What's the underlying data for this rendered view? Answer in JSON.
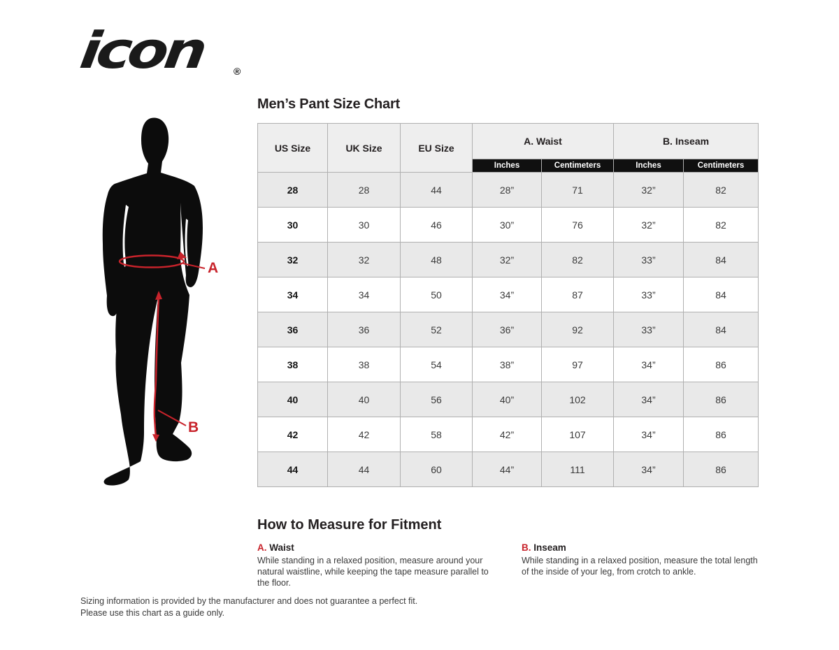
{
  "brand": {
    "logo_text": "icon",
    "registered_mark": "®"
  },
  "chart": {
    "title": "Men’s Pant Size Chart",
    "headers": {
      "us": "US Size",
      "uk": "UK Size",
      "eu": "EU Size",
      "waist": "A. Waist",
      "inseam": "B. Inseam",
      "inches": "Inches",
      "centimeters": "Centimeters"
    },
    "rows": [
      [
        "28",
        "28",
        "44",
        "28”",
        "71",
        "32”",
        "82"
      ],
      [
        "30",
        "30",
        "46",
        "30”",
        "76",
        "32”",
        "82"
      ],
      [
        "32",
        "32",
        "48",
        "32”",
        "82",
        "33”",
        "84"
      ],
      [
        "34",
        "34",
        "50",
        "34”",
        "87",
        "33”",
        "84"
      ],
      [
        "36",
        "36",
        "52",
        "36”",
        "92",
        "33”",
        "84"
      ],
      [
        "38",
        "38",
        "54",
        "38”",
        "97",
        "34”",
        "86"
      ],
      [
        "40",
        "40",
        "56",
        "40”",
        "102",
        "34”",
        "86"
      ],
      [
        "42",
        "42",
        "58",
        "42”",
        "107",
        "34”",
        "86"
      ],
      [
        "44",
        "44",
        "60",
        "44”",
        "111",
        "34”",
        "86"
      ]
    ]
  },
  "figure": {
    "waist_label": "A",
    "inseam_label": "B"
  },
  "how_to_measure": {
    "title": "How to Measure for Fitment",
    "items": [
      {
        "letter": "A.",
        "name": "Waist",
        "description": "While standing in a relaxed position, measure around your natural waistline, while keeping the tape measure parallel to the floor."
      },
      {
        "letter": "B.",
        "name": "Inseam",
        "description": "While standing in a relaxed position, measure the total length of the inside of your leg, from crotch to ankle."
      }
    ]
  },
  "footer": {
    "line1": "Sizing information is provided by the manufacturer and does not guarantee a perfect fit.",
    "line2": "Please use this chart as a guide only."
  },
  "colors": {
    "accent_red": "#c8232b",
    "table_header_bg": "#eeeeee",
    "row_alt_bg": "#e9e9e9",
    "black_bar_bg": "#101010",
    "border": "#b0b0b0",
    "silhouette": "#0c0c0c"
  }
}
